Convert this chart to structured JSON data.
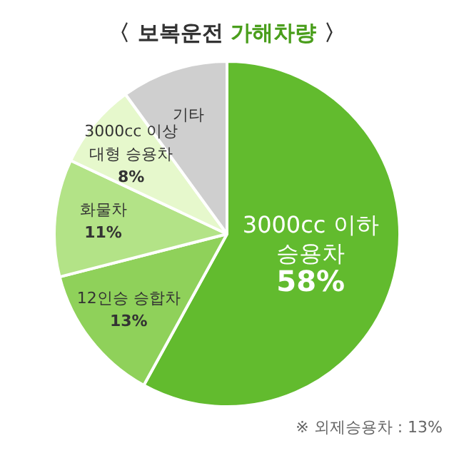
{
  "chart_data": {
    "type": "pie",
    "title": "〈 보복운전 가해차량 〉",
    "categories": [
      "3000cc 이하 승용차",
      "12인승 승합차",
      "화물차",
      "3000cc 이상 대형 승용차",
      "기타"
    ],
    "values": [
      58,
      13,
      11,
      8,
      10
    ],
    "colors": [
      "#62bb2e",
      "#8fd15a",
      "#b3e387",
      "#e6f8cc",
      "#cfcfcf"
    ],
    "value_labels": [
      "58%",
      "13%",
      "11%",
      "8%",
      null
    ],
    "annotations": [
      "※ 외제승용차 : 13%"
    ]
  }
}
